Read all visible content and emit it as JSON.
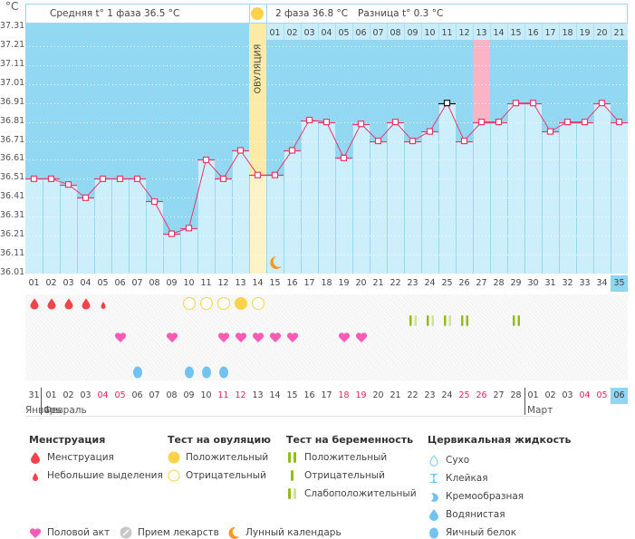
{
  "unit_label": "°C",
  "header": {
    "phase1": "Средняя t° 1 фаза 36.5 °C",
    "phase2": "2 фаза 36.8 °C",
    "diff": "Разница t° 0.3 °C",
    "ovulation_label": "ОВУЛЯЦИЯ"
  },
  "chart_data": {
    "type": "line",
    "title": "",
    "xlabel": "",
    "ylabel": "°C",
    "ylim": [
      36.01,
      37.31
    ],
    "y_ticks": [
      "37.31",
      "37.21",
      "37.11",
      "37.01",
      "36.91",
      "36.81",
      "36.71",
      "36.61",
      "36.51",
      "36.41",
      "36.31",
      "36.21",
      "36.11",
      "36.01"
    ],
    "x": [
      "01",
      "02",
      "03",
      "04",
      "05",
      "06",
      "07",
      "08",
      "09",
      "10",
      "11",
      "12",
      "13",
      "14",
      "15",
      "16",
      "17",
      "18",
      "19",
      "20",
      "21",
      "22",
      "23",
      "24",
      "25",
      "26",
      "27",
      "28",
      "29",
      "30",
      "31",
      "32",
      "33",
      "34",
      "35"
    ],
    "series": [
      {
        "name": "Базальная температура",
        "values": [
          36.51,
          36.51,
          36.48,
          36.41,
          36.51,
          36.51,
          36.51,
          36.39,
          36.22,
          36.25,
          36.61,
          36.51,
          36.66,
          36.53,
          36.53,
          36.66,
          36.82,
          36.81,
          36.62,
          36.8,
          36.71,
          36.81,
          36.71,
          36.76,
          36.91,
          36.71,
          36.81,
          36.81,
          36.91,
          36.91,
          36.76,
          36.81,
          36.81,
          36.91,
          36.81
        ],
        "color": "#e8396b"
      }
    ],
    "ovulation_day": 14,
    "highlighted_point_day": 25,
    "highlighted_column_day": 27,
    "phase2_day_labels": [
      "01",
      "02",
      "03",
      "04",
      "05",
      "06",
      "07",
      "08",
      "09",
      "10",
      "11",
      "12",
      "13",
      "14",
      "15",
      "16",
      "17",
      "18",
      "19",
      "20",
      "21"
    ],
    "phase2_highlight_label": "13",
    "selected_day": "35",
    "grid": true
  },
  "moon_day": 15,
  "rows": {
    "menstruation": {
      "heavy": [
        1,
        2,
        3,
        4
      ],
      "light": [
        5
      ]
    },
    "ovulation_test": {
      "positive": [
        13
      ],
      "negative": [
        10,
        11,
        12,
        14
      ]
    },
    "pregnancy_test": {
      "negative_dim_pairs": [
        23,
        24,
        25
      ],
      "positive": [
        26,
        29
      ]
    },
    "intercourse": [
      6,
      9,
      12,
      13,
      14,
      15,
      16,
      19,
      20
    ],
    "cervical_eggwhite": [
      7,
      10,
      11,
      12
    ]
  },
  "dates": [
    {
      "d": "31",
      "red": false
    },
    {
      "d": "01",
      "red": false
    },
    {
      "d": "02",
      "red": false
    },
    {
      "d": "03",
      "red": false
    },
    {
      "d": "04",
      "red": true
    },
    {
      "d": "05",
      "red": true
    },
    {
      "d": "06",
      "red": false
    },
    {
      "d": "07",
      "red": false
    },
    {
      "d": "08",
      "red": false
    },
    {
      "d": "09",
      "red": false
    },
    {
      "d": "10",
      "red": false
    },
    {
      "d": "11",
      "red": true
    },
    {
      "d": "12",
      "red": true
    },
    {
      "d": "13",
      "red": false
    },
    {
      "d": "14",
      "red": false
    },
    {
      "d": "15",
      "red": false
    },
    {
      "d": "16",
      "red": false
    },
    {
      "d": "17",
      "red": false
    },
    {
      "d": "18",
      "red": true
    },
    {
      "d": "19",
      "red": true
    },
    {
      "d": "20",
      "red": false
    },
    {
      "d": "21",
      "red": false
    },
    {
      "d": "22",
      "red": false
    },
    {
      "d": "23",
      "red": false
    },
    {
      "d": "24",
      "red": false
    },
    {
      "d": "25",
      "red": true
    },
    {
      "d": "26",
      "red": true
    },
    {
      "d": "27",
      "red": false
    },
    {
      "d": "28",
      "red": false
    },
    {
      "d": "01",
      "red": false
    },
    {
      "d": "02",
      "red": false
    },
    {
      "d": "03",
      "red": false
    },
    {
      "d": "04",
      "red": true
    },
    {
      "d": "05",
      "red": true
    },
    {
      "d": "06",
      "red": false,
      "sel": true
    }
  ],
  "months": {
    "jan": "Январь",
    "feb": "Февраль",
    "mar": "Март"
  },
  "legend": {
    "menstruation": {
      "title": "Менструация",
      "items": [
        "Менструация",
        "Небольшие выделения"
      ]
    },
    "ovulation_test": {
      "title": "Тест на овуляцию",
      "items": [
        "Положительный",
        "Отрицательный"
      ]
    },
    "pregnancy_test": {
      "title": "Тест на беременность",
      "items": [
        "Положительный",
        "Отрицательный",
        "Слабоположительный"
      ]
    },
    "cervical": {
      "title": "Цервикальная жидкость",
      "items": [
        "Сухо",
        "Клейкая",
        "Кремообразная",
        "Водянистая",
        "Яичный белок"
      ]
    },
    "bottom": [
      "Половой акт",
      "Прием лекарств",
      "Лунный календарь"
    ]
  },
  "colors": {
    "sky": "#93d8f3",
    "bar": "#cdeefb",
    "line": "#e8396b",
    "ovulation": "#fdeaa6",
    "pink_col": "#fbb3c6",
    "blood": "#f0434a",
    "heart": "#fb5bb5",
    "sun": "#fcd24a",
    "test_green": "#8fbf12",
    "test_dim": "#cfe29a",
    "egg": "#73c3f2",
    "moon": "#f39a1d"
  }
}
